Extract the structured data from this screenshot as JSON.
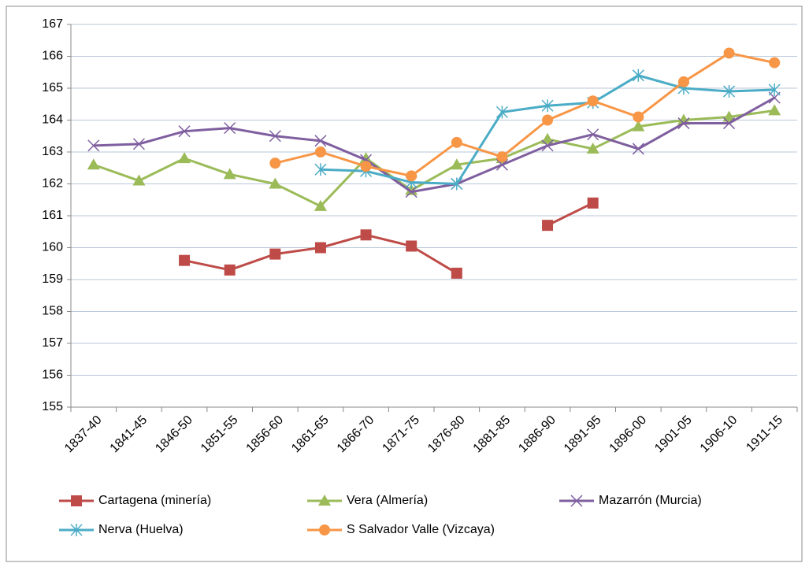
{
  "chart_data": {
    "type": "line",
    "categories": [
      "1837-40",
      "1841-45",
      "1846-50",
      "1851-55",
      "1856-60",
      "1861-65",
      "1866-70",
      "1871-75",
      "1876-80",
      "1881-85",
      "1886-90",
      "1891-95",
      "1896-00",
      "1901-05",
      "1906-10",
      "1911-15"
    ],
    "ylim": [
      155,
      167
    ],
    "yticks": [
      155,
      156,
      157,
      158,
      159,
      160,
      161,
      162,
      163,
      164,
      165,
      166,
      167
    ],
    "grid": true,
    "series": [
      {
        "name": "Cartagena (minería)",
        "color": "#be4b48",
        "marker": "square",
        "values": [
          null,
          null,
          159.6,
          159.3,
          159.8,
          160.0,
          160.4,
          160.05,
          159.2,
          null,
          160.7,
          161.4,
          null,
          null,
          null,
          null
        ]
      },
      {
        "name": "Vera (Almería)",
        "color": "#9bbb59",
        "marker": "triangle",
        "values": [
          162.6,
          162.1,
          162.8,
          162.3,
          162.0,
          161.3,
          162.8,
          161.8,
          162.6,
          162.8,
          163.4,
          163.1,
          163.8,
          164.0,
          164.1,
          164.3
        ]
      },
      {
        "name": "Mazarrón (Murcia)",
        "color": "#7f5f9f",
        "marker": "x",
        "values": [
          163.2,
          163.25,
          163.65,
          163.75,
          163.5,
          163.35,
          162.75,
          161.75,
          162.0,
          162.6,
          163.2,
          163.55,
          163.1,
          163.9,
          163.9,
          164.7
        ]
      },
      {
        "name": "Nerva (Huelva)",
        "color": "#4bacc6",
        "marker": "star",
        "values": [
          null,
          null,
          null,
          null,
          null,
          162.45,
          162.4,
          162.05,
          162.0,
          164.25,
          164.45,
          164.55,
          165.4,
          165.0,
          164.9,
          164.95
        ]
      },
      {
        "name": "S Salvador Valle (Vizcaya)",
        "color": "#f79646",
        "marker": "circle",
        "values": [
          null,
          null,
          null,
          null,
          162.65,
          163.0,
          162.55,
          162.25,
          163.3,
          162.85,
          164.0,
          164.6,
          164.1,
          165.2,
          166.1,
          165.8
        ]
      }
    ]
  }
}
